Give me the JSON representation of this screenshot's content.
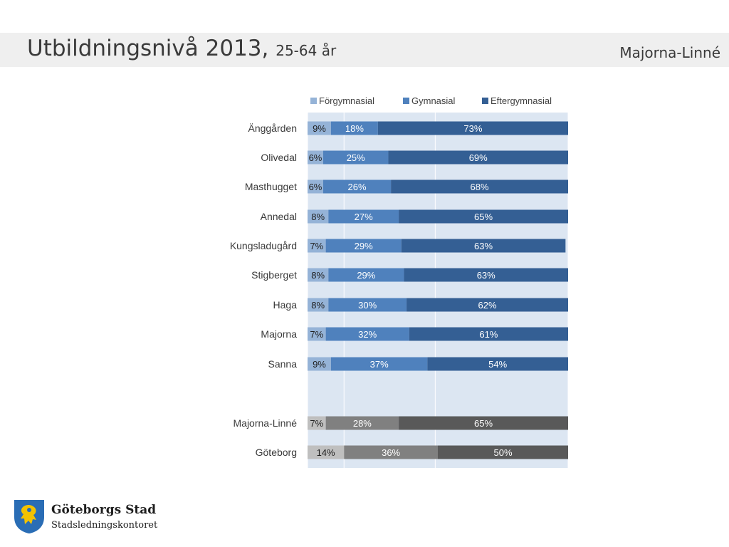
{
  "slide": {
    "title_main": "Utbildningsnivå 2013,",
    "title_sub": "25-64 år",
    "district": "Majorna-Linné"
  },
  "logo": {
    "name": "Göteborgs Stad",
    "department": "Stadsledningskontoret",
    "colors": {
      "shield": "#2a6db5",
      "lion": "#f2c200"
    }
  },
  "chart_data": {
    "type": "bar",
    "orientation": "horizontal",
    "stacked": true,
    "percent": true,
    "categories": [
      "Änggården",
      "Olivedal",
      "Masthugget",
      "Annedal",
      "Kungsladugård",
      "Stigberget",
      "Haga",
      "Majorna",
      "Sanna",
      "Majorna-Linné",
      "Göteborg"
    ],
    "series": [
      {
        "name": "Förgymnasial",
        "values": [
          9,
          6,
          6,
          8,
          7,
          8,
          8,
          7,
          9,
          7,
          14
        ]
      },
      {
        "name": "Gymnasial",
        "values": [
          18,
          25,
          26,
          27,
          29,
          29,
          30,
          32,
          37,
          28,
          36
        ]
      },
      {
        "name": "Eftergymnasial",
        "values": [
          73,
          69,
          68,
          65,
          63,
          63,
          62,
          61,
          54,
          65,
          50
        ]
      }
    ],
    "legend_position": "top",
    "xlim": [
      0,
      100
    ],
    "gridlines": true,
    "colors": {
      "series": [
        "#95b3d7",
        "#4f81bd",
        "#345f94"
      ],
      "summary_series": [
        "#bfbfbf",
        "#808080",
        "#595959"
      ],
      "plot_background": "#dce6f2",
      "label_dark": "#1f1f1f",
      "label_light": "#ffffff"
    },
    "summary_categories": [
      "Majorna-Linné",
      "Göteborg"
    ]
  }
}
